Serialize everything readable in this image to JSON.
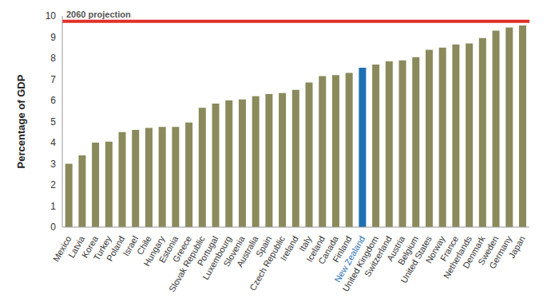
{
  "chart_data": {
    "type": "bar",
    "y_label": "Percentage of GDP",
    "categories": [
      "Mexico",
      "Latvia",
      "Korea",
      "Turkey",
      "Poland",
      "Israel",
      "Chile",
      "Hungary",
      "Estonia",
      "Greece",
      "Slovak Republic",
      "Portugal",
      "Luxembourg",
      "Slovenia",
      "Australia",
      "Spain",
      "Czech Republic",
      "Ireland",
      "Italy",
      "Iceland",
      "Canada",
      "Finland",
      "New Zealand",
      "United Kingdom",
      "Switzerland",
      "Austria",
      "Belgium",
      "United States",
      "Norway",
      "France",
      "Netherlands",
      "Denmark",
      "Sweden",
      "Germany",
      "Japan"
    ],
    "values": [
      3.0,
      3.4,
      4.0,
      4.05,
      4.5,
      4.6,
      4.7,
      4.75,
      4.75,
      4.95,
      5.65,
      5.85,
      6.0,
      6.05,
      6.2,
      6.3,
      6.35,
      6.5,
      6.85,
      7.15,
      7.2,
      7.3,
      7.55,
      7.7,
      7.85,
      7.9,
      8.05,
      8.4,
      8.5,
      8.65,
      8.7,
      8.95,
      9.3,
      9.45,
      9.55
    ],
    "color": "#8a8a5c",
    "colors": [
      "#8a8a5c",
      "#8a8a5c",
      "#8a8a5c",
      "#8a8a5c",
      "#8a8a5c",
      "#8a8a5c",
      "#8a8a5c",
      "#8a8a5c",
      "#8a8a5c",
      "#8a8a5c",
      "#8a8a5c",
      "#8a8a5c",
      "#8a8a5c",
      "#8a8a5c",
      "#8a8a5c",
      "#8a8a5c",
      "#8a8a5c",
      "#8a8a5c",
      "#8a8a5c",
      "#8a8a5c",
      "#8a8a5c",
      "#8a8a5c",
      "#1f6fb4",
      "#8a8a5c",
      "#8a8a5c",
      "#8a8a5c",
      "#8a8a5c",
      "#8a8a5c",
      "#8a8a5c",
      "#8a8a5c",
      "#8a8a5c",
      "#8a8a5c",
      "#8a8a5c",
      "#8a8a5c",
      "#8a8a5c"
    ],
    "ylim": [
      0,
      10
    ],
    "yticks": [
      0,
      1,
      2,
      3,
      4,
      5,
      6,
      7,
      8,
      9,
      10
    ],
    "grid": false,
    "reference_line": {
      "value": 9.75,
      "label": "2060 projection",
      "color": "#e0312a"
    }
  }
}
